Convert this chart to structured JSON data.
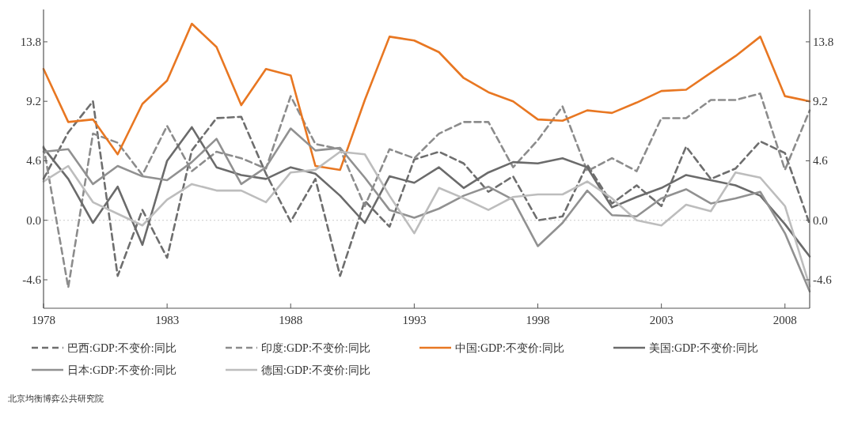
{
  "chart_data": {
    "type": "line",
    "x": [
      1978,
      1979,
      1980,
      1981,
      1982,
      1983,
      1984,
      1985,
      1986,
      1987,
      1988,
      1989,
      1990,
      1991,
      1992,
      1993,
      1994,
      1995,
      1996,
      1997,
      1998,
      1999,
      2000,
      2001,
      2002,
      2003,
      2004,
      2005,
      2006,
      2007,
      2008,
      2009
    ],
    "series": [
      {
        "name": "巴西:GDP:不变价:同比",
        "color": "#6e6e6e",
        "line_style": "dashed",
        "values": [
          3.2,
          6.8,
          9.2,
          -4.3,
          0.8,
          -2.9,
          5.4,
          7.9,
          8.0,
          3.6,
          -0.1,
          3.2,
          -4.3,
          1.5,
          -0.5,
          4.7,
          5.3,
          4.4,
          2.2,
          3.4,
          0.0,
          0.3,
          4.3,
          1.3,
          2.7,
          1.1,
          5.7,
          3.2,
          4.0,
          6.1,
          5.2,
          -0.3
        ]
      },
      {
        "name": "印度:GDP:不变价:同比",
        "color": "#8c8c8c",
        "line_style": "dashed",
        "values": [
          5.7,
          -5.2,
          6.7,
          6.0,
          3.5,
          7.3,
          3.8,
          5.3,
          4.8,
          4.0,
          9.6,
          5.9,
          5.5,
          1.1,
          5.5,
          4.8,
          6.7,
          7.6,
          7.6,
          4.1,
          6.2,
          8.8,
          3.8,
          4.8,
          3.8,
          7.9,
          7.9,
          9.3,
          9.3,
          9.8,
          3.9,
          8.5
        ]
      },
      {
        "name": "中国:GDP:不变价:同比",
        "color": "#e87722",
        "line_style": "solid",
        "values": [
          11.7,
          7.6,
          7.8,
          5.1,
          9.0,
          10.8,
          15.2,
          13.4,
          8.9,
          11.7,
          11.2,
          4.2,
          3.9,
          9.3,
          14.2,
          13.9,
          13.0,
          11.0,
          9.9,
          9.2,
          7.8,
          7.7,
          8.5,
          8.3,
          9.1,
          10.0,
          10.1,
          11.4,
          12.7,
          14.2,
          9.6,
          9.2
        ]
      },
      {
        "name": "美国:GDP:不变价:同比",
        "color": "#6b6b6b",
        "line_style": "solid",
        "values": [
          5.6,
          3.2,
          -0.2,
          2.6,
          -1.9,
          4.6,
          7.2,
          4.1,
          3.5,
          3.2,
          4.1,
          3.6,
          1.9,
          -0.2,
          3.4,
          2.9,
          4.1,
          2.5,
          3.7,
          4.5,
          4.4,
          4.8,
          4.1,
          1.0,
          1.8,
          2.5,
          3.5,
          3.1,
          2.7,
          1.9,
          -0.3,
          -2.8
        ]
      },
      {
        "name": "日本:GDP:不变价:同比",
        "color": "#919191",
        "line_style": "solid",
        "values": [
          5.3,
          5.5,
          2.8,
          4.2,
          3.4,
          3.1,
          4.5,
          6.3,
          2.8,
          4.1,
          7.1,
          5.4,
          5.6,
          3.3,
          0.8,
          0.2,
          0.9,
          1.9,
          2.6,
          1.6,
          -2.0,
          -0.2,
          2.3,
          0.4,
          0.3,
          1.7,
          2.4,
          1.3,
          1.7,
          2.2,
          -1.0,
          -5.5
        ]
      },
      {
        "name": "德国:GDP:不变价:同比",
        "color": "#bdbdbd",
        "line_style": "solid",
        "values": [
          3.0,
          4.2,
          1.4,
          0.5,
          -0.4,
          1.6,
          2.8,
          2.3,
          2.3,
          1.4,
          3.7,
          3.9,
          5.3,
          5.1,
          1.9,
          -1.0,
          2.5,
          1.7,
          0.8,
          1.8,
          2.0,
          2.0,
          3.0,
          1.7,
          0.0,
          -0.4,
          1.2,
          0.7,
          3.7,
          3.3,
          1.1,
          -5.1
        ]
      }
    ],
    "xlim": [
      1978,
      2009
    ],
    "xticks": [
      1978,
      1983,
      1988,
      1993,
      1998,
      2003,
      2008
    ],
    "ylim": [
      -6.8,
      16.3
    ],
    "yticks": [
      -4.6,
      {
        "value": 0,
        "label": "0.0"
      },
      4.6,
      9.2,
      13.8
    ],
    "y2lim": [
      -6.8,
      16.3
    ],
    "y2ticks": [
      -4.6,
      {
        "value": 0,
        "label": "0.0"
      },
      4.6,
      9.2,
      13.8
    ],
    "ref_lines": [
      {
        "axis": "y",
        "value": 0,
        "color": "#cccccc",
        "line_style": "dotted"
      }
    ],
    "legend": "bottom",
    "grid": false,
    "annotations": [
      "北京均衡博弈公共研究院"
    ]
  }
}
